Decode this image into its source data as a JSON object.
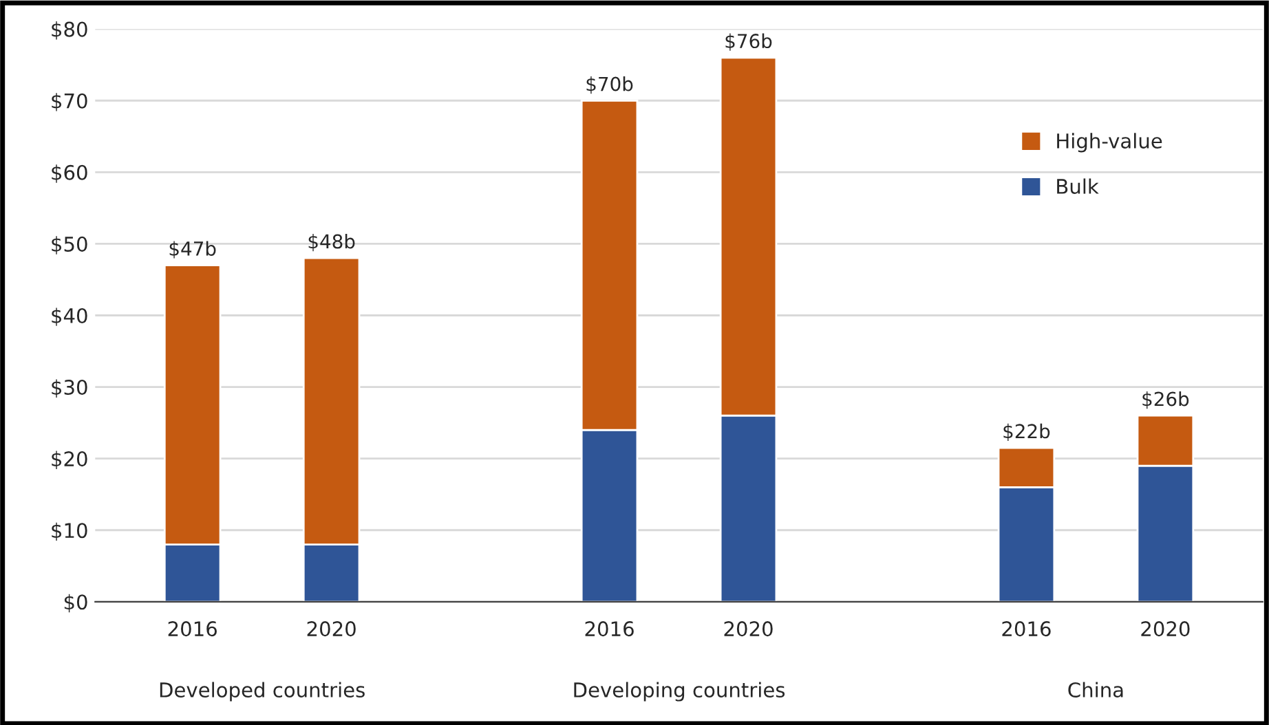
{
  "chart_data": {
    "type": "bar",
    "stacked": true,
    "categories": [
      "2016",
      "2020",
      null,
      "2016",
      "2020",
      null,
      "2016",
      "2020"
    ],
    "series": [
      {
        "name": "Bulk",
        "color": "#2f5597",
        "values": [
          8,
          8,
          null,
          24,
          26,
          null,
          16,
          19
        ]
      },
      {
        "name": "High-value",
        "color": "#c55a11",
        "values": [
          39,
          40,
          null,
          46,
          50,
          null,
          5.5,
          7
        ]
      }
    ],
    "totals": [
      "$47b",
      "$48b",
      null,
      "$70b",
      "$76b",
      null,
      "$22b",
      "$26b"
    ],
    "annotations": [
      "Developed countries",
      "Developing countries",
      "China"
    ],
    "ylim": [
      0,
      80
    ],
    "yticks": [
      {
        "value": 0,
        "label": "$0"
      },
      {
        "value": 10,
        "label": "$10"
      },
      {
        "value": 20,
        "label": "$20"
      },
      {
        "value": 30,
        "label": "$30"
      },
      {
        "value": 40,
        "label": "$40"
      },
      {
        "value": 50,
        "label": "$50"
      },
      {
        "value": 60,
        "label": "$60"
      },
      {
        "value": 70,
        "label": "$70"
      },
      {
        "value": 80,
        "label": "$80"
      }
    ],
    "grid": "y",
    "legend": "top right"
  }
}
